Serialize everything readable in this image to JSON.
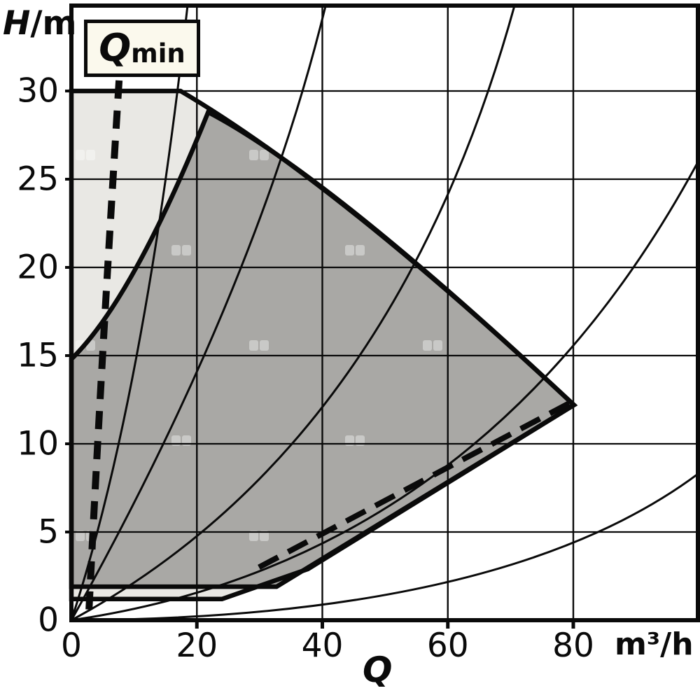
{
  "axes_text": {
    "y_label_main": "H",
    "y_label_unit": "/m",
    "x_label": "Q",
    "x_unit": "m³/h"
  },
  "annotations": {
    "qmin": {
      "main": "Q",
      "sub": "min"
    }
  },
  "colors": {
    "ink": "#0a0a0a",
    "outer_envelope_fill": "#e9e8e4",
    "operating_field_fill": "#a9a8a5",
    "label_box_fill": "#fbf9ed",
    "watermark": "#ffffff"
  },
  "chart_data": {
    "type": "area",
    "title": "",
    "x_axis": {
      "label": "Q",
      "unit": "m³/h",
      "ticks": [
        0,
        20,
        40,
        60,
        80
      ],
      "range": [
        0,
        99.9
      ],
      "gridline_step": 20
    },
    "y_axis": {
      "label": "H/m",
      "ticks": [
        30,
        25,
        20,
        15,
        10,
        5,
        0
      ],
      "range": [
        0,
        34.8
      ],
      "gridline_step": 5
    },
    "grid": true,
    "legend": "none",
    "regions": [
      {
        "name": "outer-envelope",
        "fill_key": "outer_envelope_fill",
        "path": [
          [
            "M",
            0,
            30
          ],
          [
            "L",
            17.4,
            30
          ],
          [
            "Q",
            42.2,
            24.8,
            80.1,
            12.2
          ],
          [
            "L",
            37.7,
            2.9
          ],
          [
            "L",
            24.0,
            1.2
          ],
          [
            "L",
            0,
            1.2
          ],
          [
            "Z"
          ]
        ]
      },
      {
        "name": "operating-field",
        "fill_key": "operating_field_fill",
        "path": [
          [
            "M",
            0,
            14.8
          ],
          [
            "Q",
            9.8,
            18.2,
            21.8,
            28.8
          ],
          [
            "Q",
            41.1,
            25.2,
            80.1,
            12.2
          ],
          [
            "L",
            32.7,
            1.9
          ],
          [
            "L",
            0,
            1.9
          ],
          [
            "Z"
          ]
        ]
      }
    ],
    "iso_curves": [
      {
        "name": "iso-curve-1",
        "start": [
          0,
          0
        ],
        "control": [
          11.5,
          12.5
        ],
        "end": [
          18.5,
          34.8
        ]
      },
      {
        "name": "iso-curve-2",
        "start": [
          0,
          0
        ],
        "control": [
          29.5,
          18.8
        ],
        "end": [
          40.5,
          34.8
        ]
      },
      {
        "name": "iso-curve-3",
        "start": [
          0,
          0
        ],
        "control": [
          51.1,
          9.8
        ],
        "end": [
          70.6,
          34.8
        ]
      },
      {
        "name": "iso-curve-4",
        "start": [
          0,
          0
        ],
        "control": [
          65.6,
          3.4
        ],
        "end": [
          99.9,
          26.0
        ]
      },
      {
        "name": "iso-curve-5",
        "start": [
          0,
          0
        ],
        "control": [
          69.0,
          0.1
        ],
        "end": [
          99.9,
          8.3
        ]
      }
    ],
    "qmin_limit": {
      "upper_branch": {
        "start": [
          7.6,
          30.6
        ],
        "control": [
          4.5,
          12.9
        ],
        "end": [
          2.8,
          0.55
        ]
      },
      "lower_branch": {
        "start": [
          29.9,
          3.0
        ],
        "end": [
          80.4,
          12.5
        ]
      }
    }
  }
}
